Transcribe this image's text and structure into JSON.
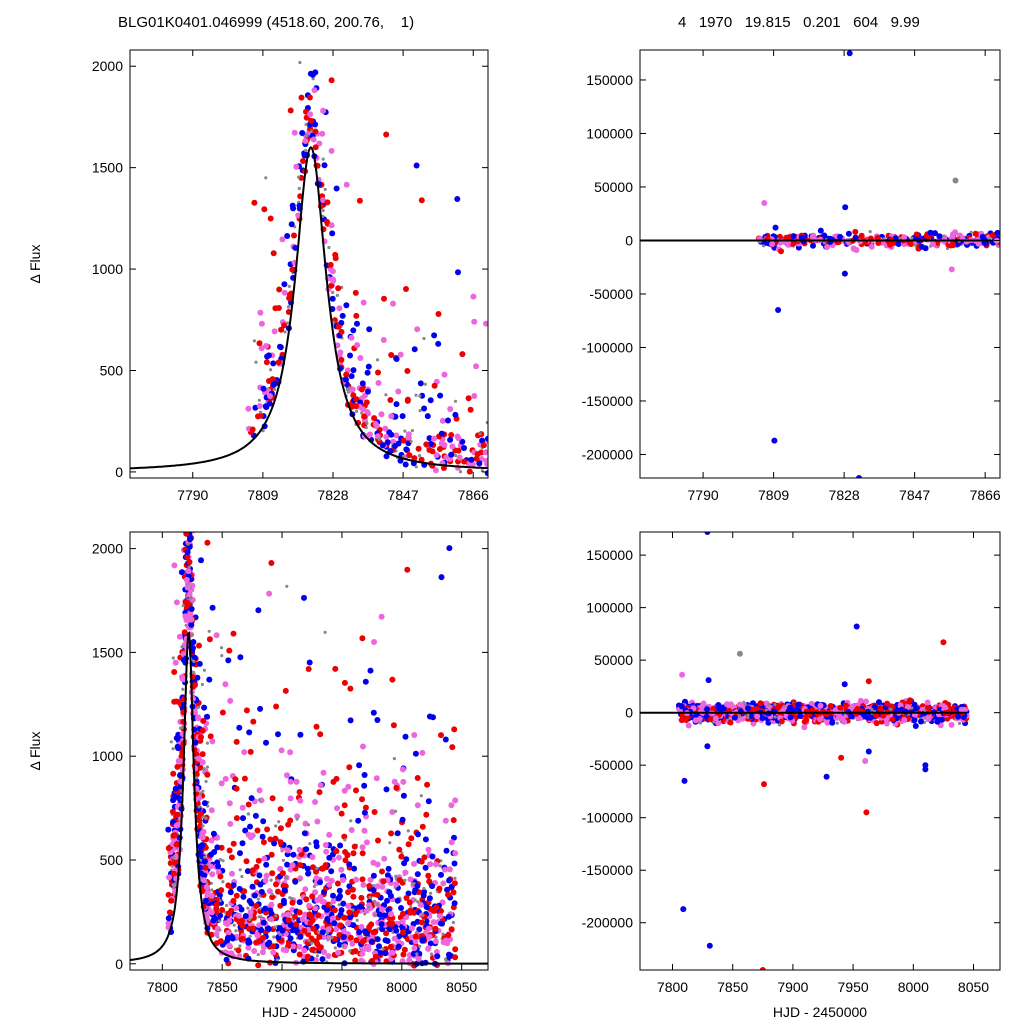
{
  "header": {
    "left_title": "BLG01K0401.046999 (4518.60, 200.76,    1)",
    "right_title": "4   1970   19.815   0.201   604   9.99"
  },
  "colors": {
    "red": "#ee0000",
    "blue": "#0000ee",
    "magenta": "#ee66dd",
    "gray": "#888888",
    "model": "#000000"
  },
  "chart_data": [
    {
      "id": "top-left",
      "type": "scatter",
      "xlim": [
        7773,
        7870
      ],
      "ylim": [
        -30,
        2080
      ],
      "xticks": [
        7790,
        7809,
        7828,
        7847,
        7866
      ],
      "yticks": [
        0,
        500,
        1000,
        1500,
        2000
      ],
      "xlabel": "",
      "ylabel": "Δ Flux",
      "model": {
        "t0": 7822,
        "peak": 1600,
        "width": 5.2
      },
      "scatter": {
        "kind": "lightcurve",
        "seed": 11,
        "n": 520,
        "xmin": 7805,
        "xmax": 7870,
        "t0": 7822,
        "peak": 1650,
        "width": 5.5,
        "base": 80,
        "spread": 260
      }
    },
    {
      "id": "top-right",
      "type": "scatter",
      "xlim": [
        7773,
        7870
      ],
      "ylim": [
        -222000,
        178000
      ],
      "xticks": [
        7790,
        7809,
        7828,
        7847,
        7866
      ],
      "yticks": [
        -200000,
        -150000,
        -100000,
        -50000,
        0,
        50000,
        100000,
        150000
      ],
      "xlabel": "",
      "ylabel": "",
      "model": {
        "flat": 0
      },
      "scatter": {
        "kind": "residual",
        "seed": 23,
        "n": 380,
        "xmin": 7805,
        "xmax": 7870,
        "spread": 3000
      },
      "outliers": [
        {
          "x": 7829.5,
          "y": 175000,
          "c": "blue"
        },
        {
          "x": 7809.5,
          "y": 12000,
          "c": "blue"
        },
        {
          "x": 7811,
          "y": -10000,
          "c": "red"
        },
        {
          "x": 7810.2,
          "y": -65000,
          "c": "blue"
        },
        {
          "x": 7809.2,
          "y": -187000,
          "c": "blue"
        },
        {
          "x": 7832,
          "y": -222000,
          "c": "blue"
        },
        {
          "x": 7828.3,
          "y": 31000,
          "c": "blue"
        },
        {
          "x": 7828.2,
          "y": -31000,
          "c": "blue"
        },
        {
          "x": 7806.5,
          "y": 35000,
          "c": "magenta"
        },
        {
          "x": 7858,
          "y": 56000,
          "c": "gray"
        },
        {
          "x": 7857,
          "y": -27000,
          "c": "magenta"
        },
        {
          "x": 7831,
          "y": 8000,
          "c": "red"
        }
      ]
    },
    {
      "id": "bottom-left",
      "type": "scatter",
      "xlim": [
        7773,
        8072
      ],
      "ylim": [
        -30,
        2080
      ],
      "xticks": [
        7800,
        7850,
        7900,
        7950,
        8000,
        8050
      ],
      "yticks": [
        0,
        500,
        1000,
        1500,
        2000
      ],
      "xlabel": "HJD - 2450000",
      "ylabel": "Δ Flux",
      "model": {
        "t0": 7822,
        "peak": 1600,
        "width": 5.2
      },
      "scatter": {
        "kind": "lightcurve",
        "seed": 37,
        "n": 1900,
        "xmin": 7805,
        "xmax": 8045,
        "t0": 7822,
        "peak": 1650,
        "width": 5.5,
        "base": 220,
        "spread": 420
      }
    },
    {
      "id": "bottom-right",
      "type": "scatter",
      "xlim": [
        7773,
        8072
      ],
      "ylim": [
        -245000,
        172000
      ],
      "xticks": [
        7800,
        7850,
        7900,
        7950,
        8000,
        8050
      ],
      "yticks": [
        -200000,
        -150000,
        -100000,
        -50000,
        0,
        50000,
        100000,
        150000
      ],
      "xlabel": "HJD - 2450000",
      "ylabel": "",
      "model": {
        "flat": 0
      },
      "scatter": {
        "kind": "residual",
        "seed": 53,
        "n": 1500,
        "xmin": 7805,
        "xmax": 8045,
        "spread": 4000
      },
      "outliers": [
        {
          "x": 7829,
          "y": 172000,
          "c": "blue"
        },
        {
          "x": 7953,
          "y": 82000,
          "c": "blue"
        },
        {
          "x": 8025,
          "y": 67000,
          "c": "red"
        },
        {
          "x": 7856,
          "y": 56000,
          "c": "gray"
        },
        {
          "x": 7808,
          "y": 36000,
          "c": "magenta"
        },
        {
          "x": 7830,
          "y": 31000,
          "c": "blue"
        },
        {
          "x": 7943,
          "y": 27000,
          "c": "blue"
        },
        {
          "x": 7963,
          "y": 30000,
          "c": "red"
        },
        {
          "x": 7810,
          "y": -65000,
          "c": "blue"
        },
        {
          "x": 7809,
          "y": -187000,
          "c": "blue"
        },
        {
          "x": 7831,
          "y": -222000,
          "c": "blue"
        },
        {
          "x": 7875,
          "y": -245000,
          "c": "red"
        },
        {
          "x": 7876,
          "y": -68000,
          "c": "red"
        },
        {
          "x": 7928,
          "y": -61000,
          "c": "blue"
        },
        {
          "x": 7961,
          "y": -95000,
          "c": "red"
        },
        {
          "x": 8010,
          "y": -50000,
          "c": "blue"
        },
        {
          "x": 8010,
          "y": -54000,
          "c": "blue"
        },
        {
          "x": 7960,
          "y": -46000,
          "c": "magenta"
        },
        {
          "x": 7940,
          "y": -43000,
          "c": "red"
        },
        {
          "x": 7963,
          "y": -37000,
          "c": "blue"
        },
        {
          "x": 7829,
          "y": -32000,
          "c": "blue"
        }
      ]
    }
  ]
}
